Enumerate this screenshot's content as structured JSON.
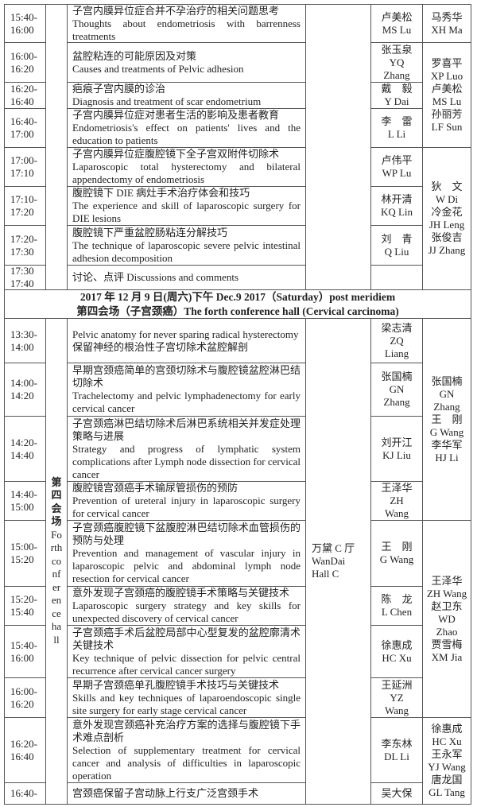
{
  "section1": {
    "rows": [
      {
        "time": "15:40-16:00",
        "topic_cn": "子宫内膜异位症合并不孕治疗的相关问题思考",
        "topic_en": "Thoughts about endometriosis with barrenness treatments",
        "speaker": [
          "卢美松",
          "MS Lu"
        ]
      },
      {
        "time": "16:00-16:20",
        "topic_cn": "盆腔粘连的可能原因及对策",
        "topic_en": "Causes and treatments of Pelvic adhesion",
        "speaker": [
          "张玉泉",
          "YQ",
          "Zhang"
        ]
      },
      {
        "time": "16:20-16:40",
        "topic_cn": "疤痕子宫内膜的诊治",
        "topic_en": "Diagnosis and treatment of scar endometrium",
        "speaker": [
          "戴　毅",
          "Y Dai"
        ]
      },
      {
        "time": "16:40-17:00",
        "topic_cn": "子宫内膜异位症对患者生活的影响及患者教育",
        "topic_en": "Endometriosis's effect on patients' lives and the education to patients",
        "speaker": [
          "李　雷",
          "L Li"
        ]
      },
      {
        "time": "17:00-17:10",
        "topic_cn": "子宫内膜异位症腹腔镜下全子宫双附件切除术",
        "topic_en": "Laparoscopic total hysterectomy and bilateral appendectomy of endometriosis",
        "speaker": [
          "卢伟平",
          "WP Lu"
        ]
      },
      {
        "time": "17:10-17:20",
        "topic_cn": "腹腔镜下 DIE 病灶手术治疗体会和技巧",
        "topic_en": "The experience and skill of laparoscopic surgery for DIE lesions",
        "speaker": [
          "林开清",
          "KQ Lin"
        ]
      },
      {
        "time": "17:20-17:30",
        "topic_cn": "腹腔镜下严重盆腔肠粘连分解技巧",
        "topic_en": "The technique of laparoscopic severe pelvic intestinal adhesion decomposition",
        "speaker": [
          "刘　青",
          "Q Liu"
        ]
      },
      {
        "time": "17:30 17:40",
        "topic_cn": "讨论、点评 Discussions and comments",
        "topic_en": "",
        "speaker": []
      }
    ],
    "moderators": [
      [
        "马秀华",
        "XH Ma"
      ],
      [
        "罗喜平",
        "XP Luo",
        "卢美松",
        "MS Lu",
        "孙丽芳",
        "LF Sun"
      ],
      [
        "狄　文",
        "W Di",
        "冷金花",
        "JH Leng",
        "张俊吉",
        "JJ Zhang"
      ]
    ]
  },
  "header": {
    "line1": "2017 年 12 月 9 日(周六)下午 Dec.9 2017（Saturday）post meridiem",
    "line2": "第四会场（子宫颈癌）The forth conference hall (Cervical carcinoma)"
  },
  "section2": {
    "session_cn": "第四会场",
    "session_en": "Forthconferencehall",
    "venue": [
      "万黛 C 厅",
      "WanDai",
      "Hall C"
    ],
    "rows": [
      {
        "time": "13:30-14:00",
        "topic_cn": "",
        "topic_en": "Pelvic anatomy for never sparing radical hysterectomy",
        "topic_cn2": "保留神经的根治性子宫切除术盆腔解剖",
        "speaker": [
          "梁志清",
          "ZQ",
          "Liang"
        ]
      },
      {
        "time": "14:00-14:20",
        "topic_cn": "早期宫颈癌简单的宫颈切除术与腹腔镜盆腔淋巴结切除术",
        "topic_en": "Trachelectomy and pelvic lymphadenectomy for early cervical cancer",
        "speaker": [
          "张国楠",
          "GN",
          "Zhang"
        ]
      },
      {
        "time": "14:20-14:40",
        "topic_cn": "子宫颈癌淋巴结切除术后淋巴系统相关并发症处理策略与进展",
        "topic_en": "Strategy and progress of lymphatic system complications after Lymph node dissection for cervical cancer",
        "speaker": [
          "刘开江",
          "KJ Liu"
        ]
      },
      {
        "time": "14:40-15:00",
        "topic_cn": "腹腔镜宫颈癌手术输尿管损伤的预防",
        "topic_en": "Prevention of ureteral injury in laparoscopic surgery for cervical cancer",
        "speaker": [
          "王泽华",
          "ZH",
          "Wang"
        ]
      },
      {
        "time": "15:00-15:20",
        "topic_cn": "子宫颈癌腹腔镜下盆腹腔淋巴结切除术血管损伤的预防与处理",
        "topic_en": "Prevention and management of vascular injury in laparoscopic pelvic and abdominal lymph node resection for cervical cancer",
        "speaker": [
          "王　刚",
          "G Wang"
        ]
      },
      {
        "time": "15:20-15:40",
        "topic_cn": "意外发现子宫颈癌的腹腔镜手术策略与关键技术",
        "topic_en": "Laparoscopic surgery strategy and key skills for unexpected discovery of cervical cancer",
        "speaker": [
          "陈　龙",
          "L Chen"
        ]
      },
      {
        "time": "15:40-16:00",
        "topic_cn": "子宫颈癌手术后盆腔局部中心型复发的盆腔廓清术关键技术",
        "topic_en": "Key technique of pelvic dissection for pelvic central recurrence after cervical cancer surgery",
        "speaker": [
          "徐惠成",
          "HC Xu"
        ]
      },
      {
        "time": "16:00-16:20",
        "topic_cn": "早期子宫颈癌单孔腹腔镜手术技巧与关键技术",
        "topic_en": "Skills and key techniques of laparoendoscopic single site surgery for early stage cervical cancer",
        "speaker": [
          "王延洲",
          "YZ",
          "Wang"
        ]
      },
      {
        "time": "16:20-16:40",
        "topic_cn": "意外发现宫颈癌补充治疗方案的选择与腹腔镜下手术难点剖析",
        "topic_en": "Selection of supplementary treatment for cervical cancer and analysis of difficulties in laparoscopic operation",
        "speaker": [
          "李东林",
          "DL Li"
        ]
      },
      {
        "time": "16:40-",
        "topic_cn": "宫颈癌保留子宫动脉上行支广泛宫颈手术",
        "topic_en": "",
        "speaker": [
          "吴大保"
        ]
      }
    ],
    "moderators": [
      [
        "张国楠",
        "GN",
        "Zhang",
        "王　刚",
        "G Wang",
        "李华军",
        "HJ Li"
      ],
      [
        "王泽华",
        "ZH Wang",
        "赵卫东",
        "WD",
        "Zhao",
        "贾雪梅",
        "XM Jia"
      ],
      [
        "徐惠成",
        "HC Xu",
        "王永军",
        "YJ Wang",
        "唐龙国",
        "GL Tang"
      ]
    ]
  }
}
